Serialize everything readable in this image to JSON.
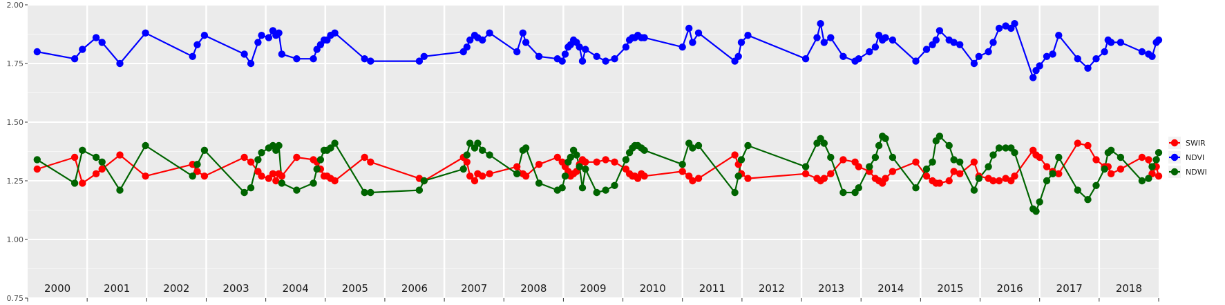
{
  "chart_data": {
    "type": "line",
    "title": "",
    "xlabel": "",
    "ylabel": "",
    "xlim": [
      2000.0,
      2019.0
    ],
    "ylim": [
      0.75,
      2.0
    ],
    "y_ticks": [
      "0.75",
      "1.00",
      "1.25",
      "1.50",
      "1.75",
      "2.00"
    ],
    "year_labels": [
      "2000",
      "2001",
      "2002",
      "2003",
      "2004",
      "2005",
      "2006",
      "2007",
      "2008",
      "2009",
      "2010",
      "2011",
      "2012",
      "2013",
      "2014",
      "2015",
      "2016",
      "2017",
      "2018"
    ],
    "grid": true,
    "legend_position": "right",
    "series": [
      {
        "name": "SWIR",
        "color": "#ff0000",
        "x": [
          2000.16,
          2000.79,
          2000.92,
          2001.15,
          2001.25,
          2001.55,
          2001.98,
          2002.77,
          2002.85,
          2002.97,
          2003.64,
          2003.75,
          2003.87,
          2003.93,
          2004.05,
          2004.12,
          2004.17,
          2004.22,
          2004.27,
          2004.52,
          2004.8,
          2004.86,
          2004.92,
          2004.98,
          2005.03,
          2005.09,
          2005.16,
          2005.66,
          2005.76,
          2006.58,
          2006.66,
          2007.32,
          2007.38,
          2007.43,
          2007.51,
          2007.56,
          2007.64,
          2007.76,
          2008.22,
          2008.32,
          2008.37,
          2008.59,
          2008.9,
          2008.98,
          2009.03,
          2009.08,
          2009.12,
          2009.17,
          2009.22,
          2009.27,
          2009.32,
          2009.37,
          2009.56,
          2009.71,
          2009.86,
          2010.05,
          2010.11,
          2010.16,
          2010.2,
          2010.25,
          2010.31,
          2010.36,
          2011.0,
          2011.11,
          2011.17,
          2011.27,
          2011.88,
          2011.94,
          2011.99,
          2012.1,
          2013.07,
          2013.26,
          2013.32,
          2013.38,
          2013.49,
          2013.7,
          2013.9,
          2013.96,
          2014.14,
          2014.24,
          2014.3,
          2014.36,
          2014.41,
          2014.53,
          2014.92,
          2015.1,
          2015.2,
          2015.26,
          2015.32,
          2015.48,
          2015.56,
          2015.66,
          2015.9,
          2015.98,
          2016.14,
          2016.22,
          2016.32,
          2016.43,
          2016.52,
          2016.58,
          2016.89,
          2016.94,
          2017.0,
          2017.12,
          2017.22,
          2017.32,
          2017.64,
          2017.81,
          2017.95,
          2018.09,
          2018.15,
          2018.2,
          2018.36,
          2018.72,
          2018.83,
          2018.89,
          2018.96,
          2019.0
        ],
        "values": [
          1.3,
          1.35,
          1.24,
          1.28,
          1.3,
          1.36,
          1.27,
          1.32,
          1.29,
          1.27,
          1.35,
          1.33,
          1.29,
          1.27,
          1.26,
          1.28,
          1.25,
          1.28,
          1.27,
          1.35,
          1.34,
          1.33,
          1.3,
          1.27,
          1.27,
          1.26,
          1.25,
          1.35,
          1.33,
          1.26,
          1.25,
          1.35,
          1.33,
          1.27,
          1.25,
          1.28,
          1.27,
          1.28,
          1.31,
          1.28,
          1.27,
          1.32,
          1.35,
          1.33,
          1.31,
          1.29,
          1.27,
          1.28,
          1.29,
          1.32,
          1.34,
          1.33,
          1.33,
          1.34,
          1.33,
          1.3,
          1.28,
          1.27,
          1.27,
          1.26,
          1.28,
          1.27,
          1.29,
          1.27,
          1.25,
          1.26,
          1.36,
          1.32,
          1.28,
          1.26,
          1.28,
          1.26,
          1.25,
          1.26,
          1.28,
          1.34,
          1.33,
          1.31,
          1.29,
          1.26,
          1.25,
          1.24,
          1.26,
          1.29,
          1.33,
          1.27,
          1.25,
          1.24,
          1.24,
          1.25,
          1.29,
          1.28,
          1.33,
          1.27,
          1.26,
          1.25,
          1.25,
          1.26,
          1.25,
          1.27,
          1.38,
          1.36,
          1.35,
          1.31,
          1.29,
          1.28,
          1.41,
          1.4,
          1.34,
          1.31,
          1.31,
          1.28,
          1.3,
          1.35,
          1.34,
          1.28,
          1.31,
          1.27
        ]
      },
      {
        "name": "NDVI",
        "color": "#0000ff",
        "x": [
          2000.16,
          2000.79,
          2000.92,
          2001.15,
          2001.25,
          2001.55,
          2001.98,
          2002.77,
          2002.85,
          2002.97,
          2003.64,
          2003.75,
          2003.87,
          2003.93,
          2004.05,
          2004.12,
          2004.17,
          2004.22,
          2004.27,
          2004.52,
          2004.8,
          2004.86,
          2004.92,
          2004.98,
          2005.03,
          2005.09,
          2005.16,
          2005.66,
          2005.76,
          2006.58,
          2006.66,
          2007.32,
          2007.38,
          2007.43,
          2007.51,
          2007.56,
          2007.64,
          2007.76,
          2008.22,
          2008.32,
          2008.37,
          2008.59,
          2008.9,
          2008.98,
          2009.03,
          2009.08,
          2009.12,
          2009.17,
          2009.22,
          2009.27,
          2009.32,
          2009.37,
          2009.56,
          2009.71,
          2009.86,
          2010.05,
          2010.11,
          2010.16,
          2010.2,
          2010.25,
          2010.31,
          2010.36,
          2011.0,
          2011.11,
          2011.17,
          2011.27,
          2011.88,
          2011.94,
          2011.99,
          2012.1,
          2013.07,
          2013.26,
          2013.32,
          2013.38,
          2013.49,
          2013.7,
          2013.9,
          2013.96,
          2014.14,
          2014.24,
          2014.3,
          2014.36,
          2014.41,
          2014.53,
          2014.92,
          2015.1,
          2015.2,
          2015.26,
          2015.32,
          2015.48,
          2015.56,
          2015.66,
          2015.9,
          2015.98,
          2016.14,
          2016.22,
          2016.32,
          2016.43,
          2016.52,
          2016.58,
          2016.89,
          2016.94,
          2017.0,
          2017.12,
          2017.22,
          2017.32,
          2017.64,
          2017.81,
          2017.95,
          2018.09,
          2018.15,
          2018.2,
          2018.36,
          2018.72,
          2018.83,
          2018.89,
          2018.96,
          2019.0
        ],
        "values": [
          1.8,
          1.77,
          1.81,
          1.86,
          1.84,
          1.75,
          1.88,
          1.78,
          1.83,
          1.87,
          1.79,
          1.75,
          1.84,
          1.87,
          1.86,
          1.89,
          1.87,
          1.88,
          1.79,
          1.77,
          1.77,
          1.81,
          1.83,
          1.85,
          1.85,
          1.87,
          1.88,
          1.77,
          1.76,
          1.76,
          1.78,
          1.8,
          1.82,
          1.85,
          1.87,
          1.86,
          1.85,
          1.88,
          1.8,
          1.88,
          1.84,
          1.78,
          1.77,
          1.76,
          1.79,
          1.82,
          1.83,
          1.85,
          1.84,
          1.82,
          1.76,
          1.81,
          1.78,
          1.76,
          1.77,
          1.82,
          1.85,
          1.86,
          1.86,
          1.87,
          1.86,
          1.86,
          1.82,
          1.9,
          1.84,
          1.88,
          1.76,
          1.78,
          1.84,
          1.87,
          1.77,
          1.86,
          1.92,
          1.84,
          1.86,
          1.78,
          1.76,
          1.77,
          1.8,
          1.82,
          1.87,
          1.85,
          1.86,
          1.85,
          1.76,
          1.81,
          1.83,
          1.85,
          1.89,
          1.85,
          1.84,
          1.83,
          1.75,
          1.78,
          1.8,
          1.84,
          1.9,
          1.91,
          1.9,
          1.92,
          1.69,
          1.72,
          1.74,
          1.78,
          1.79,
          1.87,
          1.77,
          1.73,
          1.77,
          1.8,
          1.85,
          1.84,
          1.84,
          1.8,
          1.79,
          1.78,
          1.84,
          1.85
        ]
      },
      {
        "name": "NDWI",
        "color": "#006400",
        "x": [
          2000.16,
          2000.79,
          2000.92,
          2001.15,
          2001.25,
          2001.55,
          2001.98,
          2002.77,
          2002.85,
          2002.97,
          2003.64,
          2003.75,
          2003.87,
          2003.93,
          2004.05,
          2004.12,
          2004.17,
          2004.22,
          2004.27,
          2004.52,
          2004.8,
          2004.86,
          2004.92,
          2004.98,
          2005.03,
          2005.09,
          2005.16,
          2005.66,
          2005.76,
          2006.58,
          2006.66,
          2007.32,
          2007.38,
          2007.43,
          2007.51,
          2007.56,
          2007.64,
          2007.76,
          2008.22,
          2008.32,
          2008.37,
          2008.59,
          2008.9,
          2008.98,
          2009.03,
          2009.08,
          2009.12,
          2009.17,
          2009.22,
          2009.27,
          2009.32,
          2009.37,
          2009.56,
          2009.71,
          2009.86,
          2010.05,
          2010.11,
          2010.16,
          2010.2,
          2010.25,
          2010.31,
          2010.36,
          2011.0,
          2011.11,
          2011.17,
          2011.27,
          2011.88,
          2011.94,
          2011.99,
          2012.1,
          2013.07,
          2013.26,
          2013.32,
          2013.38,
          2013.49,
          2013.7,
          2013.9,
          2013.96,
          2014.14,
          2014.24,
          2014.3,
          2014.36,
          2014.41,
          2014.53,
          2014.92,
          2015.1,
          2015.2,
          2015.26,
          2015.32,
          2015.48,
          2015.56,
          2015.66,
          2015.9,
          2015.98,
          2016.14,
          2016.22,
          2016.32,
          2016.43,
          2016.52,
          2016.58,
          2016.89,
          2016.94,
          2017.0,
          2017.12,
          2017.22,
          2017.32,
          2017.64,
          2017.81,
          2017.95,
          2018.09,
          2018.15,
          2018.2,
          2018.36,
          2018.72,
          2018.83,
          2018.89,
          2018.96,
          2019.0
        ],
        "values": [
          1.34,
          1.24,
          1.38,
          1.35,
          1.33,
          1.21,
          1.4,
          1.27,
          1.32,
          1.38,
          1.2,
          1.22,
          1.34,
          1.37,
          1.39,
          1.4,
          1.38,
          1.4,
          1.24,
          1.21,
          1.24,
          1.3,
          1.34,
          1.38,
          1.38,
          1.39,
          1.41,
          1.2,
          1.2,
          1.21,
          1.25,
          1.3,
          1.36,
          1.41,
          1.39,
          1.41,
          1.38,
          1.36,
          1.28,
          1.38,
          1.39,
          1.24,
          1.21,
          1.22,
          1.27,
          1.33,
          1.35,
          1.38,
          1.36,
          1.31,
          1.22,
          1.3,
          1.2,
          1.21,
          1.23,
          1.34,
          1.37,
          1.39,
          1.4,
          1.4,
          1.39,
          1.38,
          1.32,
          1.41,
          1.39,
          1.4,
          1.2,
          1.27,
          1.34,
          1.4,
          1.31,
          1.41,
          1.43,
          1.41,
          1.35,
          1.2,
          1.2,
          1.22,
          1.31,
          1.35,
          1.4,
          1.44,
          1.43,
          1.35,
          1.22,
          1.3,
          1.33,
          1.42,
          1.44,
          1.4,
          1.34,
          1.33,
          1.21,
          1.26,
          1.31,
          1.36,
          1.39,
          1.39,
          1.39,
          1.37,
          1.13,
          1.12,
          1.16,
          1.25,
          1.28,
          1.35,
          1.21,
          1.17,
          1.23,
          1.3,
          1.37,
          1.38,
          1.35,
          1.25,
          1.26,
          1.31,
          1.34,
          1.37
        ]
      }
    ]
  }
}
